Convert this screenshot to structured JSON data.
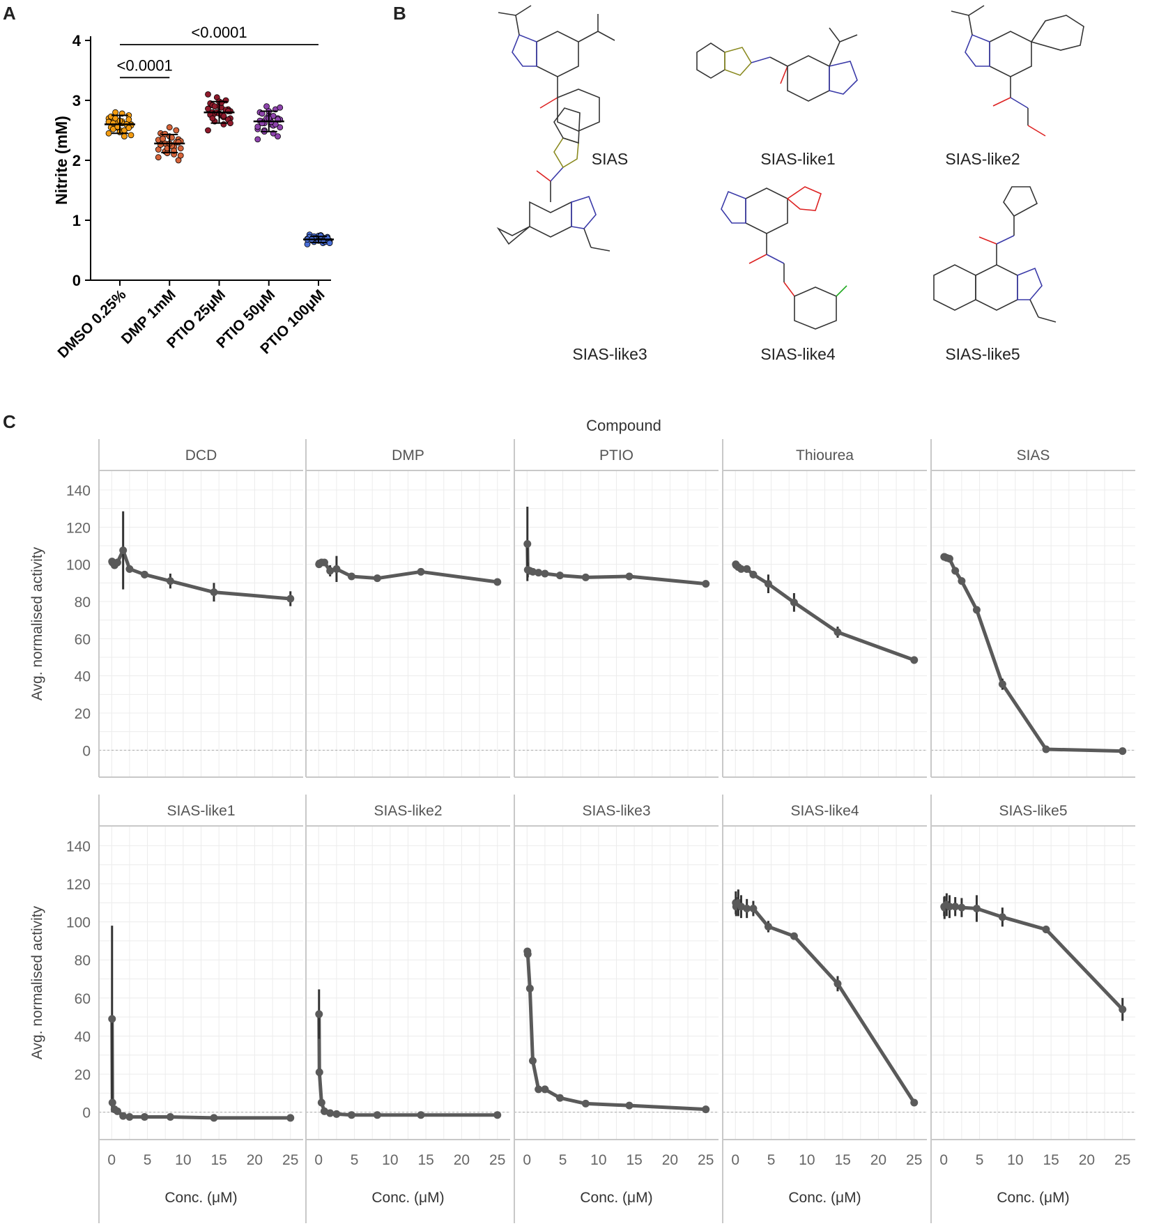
{
  "panel_labels": {
    "a": "A",
    "b": "B",
    "c": "C"
  },
  "panel_b": {
    "molecules": [
      {
        "name": "SIAS"
      },
      {
        "name": "SIAS-like1"
      },
      {
        "name": "SIAS-like2"
      },
      {
        "name": "SIAS-like3"
      },
      {
        "name": "SIAS-like4"
      },
      {
        "name": "SIAS-like5"
      }
    ]
  },
  "chart_data": [
    {
      "id": "panel-a",
      "type": "scatter",
      "title": "",
      "xlabel": "",
      "ylabel": "Nitrite (mM)",
      "ylim": [
        0,
        4
      ],
      "yticks": [
        "0",
        "1",
        "2",
        "3",
        "4"
      ],
      "categories": [
        "DMSO 0.25%",
        "DMP 1mM",
        "PTIO 25μM",
        "PTIO 50μM",
        "PTIO 100μM"
      ],
      "colors": [
        "#f39c12",
        "#d6643a",
        "#8e1a2b",
        "#8e44ad",
        "#4a6fd8"
      ],
      "series": [
        {
          "name": "DMSO 0.25%",
          "mean": 2.6,
          "sd": 0.15,
          "values": [
            2.45,
            2.5,
            2.55,
            2.6,
            2.65,
            2.7,
            2.75,
            2.5,
            2.55,
            2.6,
            2.65,
            2.7,
            2.4,
            2.8,
            2.58,
            2.62,
            2.52,
            2.68,
            2.47,
            2.73,
            2.6,
            2.56,
            2.64,
            2.5,
            2.7,
            2.42,
            2.78,
            2.62,
            2.54,
            2.66
          ]
        },
        {
          "name": "DMP 1mM",
          "mean": 2.28,
          "sd": 0.15,
          "values": [
            2.05,
            2.1,
            2.15,
            2.2,
            2.25,
            2.3,
            2.35,
            2.4,
            2.45,
            2.5,
            2.12,
            2.18,
            2.22,
            2.28,
            2.32,
            2.38,
            2.42,
            2.0,
            2.55,
            2.26,
            2.3,
            2.2,
            2.34,
            2.16,
            2.44,
            2.08,
            2.24,
            2.36,
            2.3,
            2.28
          ]
        },
        {
          "name": "PTIO 25μM",
          "mean": 2.8,
          "sd": 0.18,
          "values": [
            2.5,
            2.6,
            2.65,
            2.7,
            2.75,
            2.8,
            2.85,
            2.9,
            2.95,
            3.0,
            3.05,
            3.1,
            2.72,
            2.78,
            2.82,
            2.88,
            2.92,
            2.68,
            2.98,
            2.76,
            2.84,
            2.8,
            2.86,
            2.74,
            2.9,
            2.62,
            2.96,
            2.7,
            2.82,
            2.78
          ]
        },
        {
          "name": "PTIO 50μM",
          "mean": 2.65,
          "sd": 0.17,
          "values": [
            2.35,
            2.45,
            2.5,
            2.55,
            2.6,
            2.65,
            2.7,
            2.75,
            2.8,
            2.85,
            2.9,
            2.52,
            2.58,
            2.62,
            2.68,
            2.72,
            2.78,
            2.4,
            2.82,
            2.66,
            2.6,
            2.7,
            2.56,
            2.74,
            2.48,
            2.88,
            2.64,
            2.62,
            2.68,
            2.7
          ]
        },
        {
          "name": "PTIO 100μM",
          "mean": 0.68,
          "sd": 0.05,
          "values": [
            0.6,
            0.62,
            0.64,
            0.66,
            0.68,
            0.7,
            0.72,
            0.74,
            0.76,
            0.65,
            0.67,
            0.69,
            0.71,
            0.73,
            0.63,
            0.75,
            0.68,
            0.7,
            0.66,
            0.72,
            0.64,
            0.7,
            0.68,
            0.66,
            0.7,
            0.62,
            0.74,
            0.68,
            0.7,
            0.66
          ]
        }
      ],
      "annotations": [
        {
          "text": "<0.0001",
          "from": "DMSO 0.25%",
          "to": "DMP 1mM",
          "level": 3.38
        },
        {
          "text": "<0.0001",
          "from": "DMSO 0.25%",
          "to": "PTIO 100μM",
          "level": 3.93
        }
      ]
    },
    {
      "id": "panel-c",
      "type": "line",
      "title": "Compound",
      "xlabel": "Conc. (μM)",
      "ylabel": "Avg. normalised activity",
      "xlim": [
        -1,
        26
      ],
      "ylim": [
        -10,
        146
      ],
      "xticks": [
        "0",
        "5",
        "10",
        "15",
        "20",
        "25"
      ],
      "yticks": [
        "0",
        "20",
        "40",
        "60",
        "80",
        "100",
        "120",
        "140"
      ],
      "x": [
        0.05,
        0.1,
        0.4,
        0.8,
        1.6,
        2.5,
        4.6,
        8.2,
        14.3,
        25
      ],
      "series": [
        {
          "name": "DCD",
          "values": [
            101.5,
            101,
            99.5,
            101,
            107.5,
            97.5,
            94.5,
            91,
            85,
            81.5
          ],
          "err": [
            1,
            1,
            1,
            2,
            21,
            2,
            2,
            4,
            5,
            4
          ]
        },
        {
          "name": "DMP",
          "values": [
            100,
            100.5,
            101,
            101,
            96.5,
            97.5,
            93.5,
            92.5,
            96,
            90.5
          ],
          "err": [
            2,
            1,
            2,
            1,
            3,
            7,
            1,
            1,
            2,
            1
          ]
        },
        {
          "name": "PTIO",
          "values": [
            111,
            97,
            96.5,
            96,
            95.5,
            95,
            94,
            93,
            93.5,
            89.5
          ],
          "err": [
            20,
            4,
            2,
            1,
            1,
            1,
            2,
            1,
            1,
            2
          ]
        },
        {
          "name": "Thiourea",
          "values": [
            100,
            99.5,
            98.5,
            97.5,
            97.5,
            94.5,
            89.5,
            79.5,
            63.5,
            48.5
          ],
          "err": [
            1,
            1,
            1,
            1,
            2,
            2,
            5,
            5,
            3,
            2
          ]
        },
        {
          "name": "SIAS",
          "values": [
            104,
            104,
            103.5,
            103,
            96.5,
            91,
            75.5,
            35.5,
            0.5,
            -0.5
          ],
          "err": [
            1,
            1,
            1,
            2,
            2,
            2,
            2,
            3,
            1,
            1
          ]
        },
        {
          "name": "SIAS-like1",
          "values": [
            49,
            5,
            1.5,
            0.5,
            -2,
            -2.5,
            -2.5,
            -2.5,
            -3,
            -3
          ],
          "err": [
            49,
            2,
            1,
            1,
            1,
            1,
            1,
            1,
            1,
            1
          ]
        },
        {
          "name": "SIAS-like2",
          "values": [
            51.5,
            21,
            5,
            0.5,
            -0.5,
            -1,
            -1.5,
            -1.5,
            -1.5,
            -1.5
          ],
          "err": [
            13,
            2,
            2,
            1,
            1,
            1,
            1,
            1,
            1,
            1
          ]
        },
        {
          "name": "SIAS-like3",
          "values": [
            84.5,
            83,
            65,
            27,
            12,
            12,
            7.5,
            4.5,
            3.5,
            1.5
          ],
          "err": [
            1,
            1,
            1,
            1,
            1,
            1,
            1,
            1,
            1,
            1
          ]
        },
        {
          "name": "SIAS-like4",
          "values": [
            110,
            108,
            110,
            108,
            107,
            107,
            97.5,
            92.5,
            67.5,
            5
          ],
          "err": [
            6,
            5,
            7,
            6,
            5,
            4,
            3,
            1,
            4,
            1
          ]
        },
        {
          "name": "SIAS-like5",
          "values": [
            108,
            107.5,
            109,
            108,
            108,
            107.5,
            107,
            102.5,
            96,
            54
          ],
          "err": [
            5,
            6,
            6,
            6,
            5,
            5,
            7,
            5,
            2,
            6
          ]
        }
      ]
    }
  ]
}
